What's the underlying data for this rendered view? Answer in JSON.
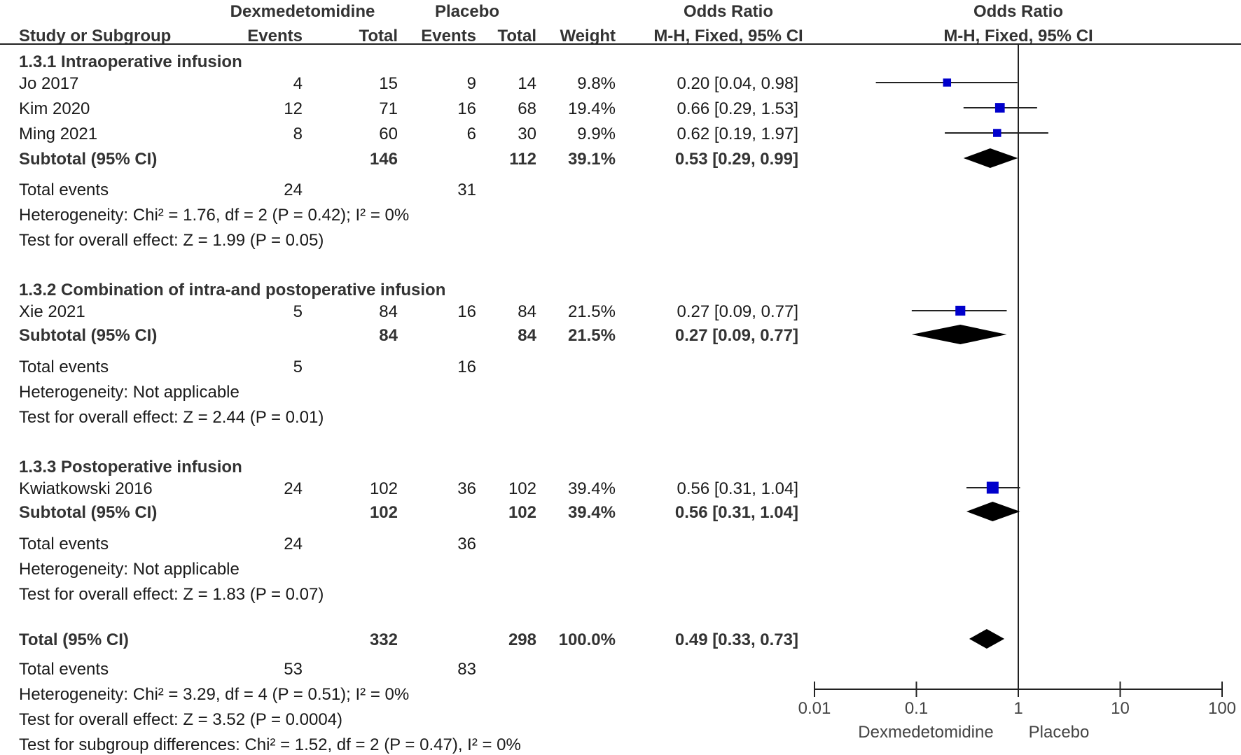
{
  "chart_data": {
    "type": "forest",
    "title": "Odds Ratio",
    "method": "M-H, Fixed, 95% CI",
    "header": {
      "group1": "Dexmedetomidine",
      "group2": "Placebo",
      "or_col": "Odds Ratio",
      "plot_col": "Odds Ratio",
      "study_col": "Study or Subgroup",
      "events": "Events",
      "total": "Total",
      "weight": "Weight",
      "or_sub": "M-H, Fixed, 95% CI",
      "plot_sub": "M-H, Fixed, 95% CI"
    },
    "subgroups": [
      {
        "title": "1.3.1 Intraoperative infusion",
        "studies": [
          {
            "name": "Jo 2017",
            "e1": "4",
            "t1": "15",
            "e2": "9",
            "t2": "14",
            "weight": "9.8%",
            "or_text": "0.20 [0.04, 0.98]",
            "or": 0.2,
            "lo": 0.04,
            "hi": 0.98
          },
          {
            "name": "Kim 2020",
            "e1": "12",
            "t1": "71",
            "e2": "16",
            "t2": "68",
            "weight": "19.4%",
            "or_text": "0.66 [0.29, 1.53]",
            "or": 0.66,
            "lo": 0.29,
            "hi": 1.53
          },
          {
            "name": "Ming 2021",
            "e1": "8",
            "t1": "60",
            "e2": "6",
            "t2": "30",
            "weight": "9.9%",
            "or_text": "0.62 [0.19, 1.97]",
            "or": 0.62,
            "lo": 0.19,
            "hi": 1.97
          }
        ],
        "subtotal": {
          "label": "Subtotal (95% CI)",
          "t1": "146",
          "t2": "112",
          "weight": "39.1%",
          "or_text": "0.53 [0.29, 0.99]",
          "or": 0.53,
          "lo": 0.29,
          "hi": 0.99
        },
        "total_events": {
          "label": "Total events",
          "e1": "24",
          "e2": "31"
        },
        "heterogeneity": "Heterogeneity: Chi² = 1.76, df = 2 (P = 0.42); I² = 0%",
        "overall": "Test for overall effect: Z = 1.99 (P = 0.05)"
      },
      {
        "title": "1.3.2 Combination of intra-and postoperative infusion",
        "studies": [
          {
            "name": "Xie 2021",
            "e1": "5",
            "t1": "84",
            "e2": "16",
            "t2": "84",
            "weight": "21.5%",
            "or_text": "0.27 [0.09, 0.77]",
            "or": 0.27,
            "lo": 0.09,
            "hi": 0.77
          }
        ],
        "subtotal": {
          "label": "Subtotal (95% CI)",
          "t1": "84",
          "t2": "84",
          "weight": "21.5%",
          "or_text": "0.27 [0.09, 0.77]",
          "or": 0.27,
          "lo": 0.09,
          "hi": 0.77
        },
        "total_events": {
          "label": "Total events",
          "e1": "5",
          "e2": "16"
        },
        "heterogeneity": "Heterogeneity: Not applicable",
        "overall": "Test for overall effect: Z = 2.44 (P = 0.01)"
      },
      {
        "title": "1.3.3 Postoperative infusion",
        "studies": [
          {
            "name": "Kwiatkowski 2016",
            "e1": "24",
            "t1": "102",
            "e2": "36",
            "t2": "102",
            "weight": "39.4%",
            "or_text": "0.56 [0.31, 1.04]",
            "or": 0.56,
            "lo": 0.31,
            "hi": 1.04
          }
        ],
        "subtotal": {
          "label": "Subtotal (95% CI)",
          "t1": "102",
          "t2": "102",
          "weight": "39.4%",
          "or_text": "0.56 [0.31, 1.04]",
          "or": 0.56,
          "lo": 0.31,
          "hi": 1.04
        },
        "total_events": {
          "label": "Total events",
          "e1": "24",
          "e2": "36"
        },
        "heterogeneity": "Heterogeneity: Not applicable",
        "overall": "Test for overall effect: Z = 1.83 (P = 0.07)"
      }
    ],
    "total": {
      "label": "Total (95% CI)",
      "t1": "332",
      "t2": "298",
      "weight": "100.0%",
      "or_text": "0.49 [0.33, 0.73]",
      "or": 0.49,
      "lo": 0.33,
      "hi": 0.73
    },
    "total_events": {
      "label": "Total events",
      "e1": "53",
      "e2": "83"
    },
    "heterogeneity": "Heterogeneity: Chi² = 3.29, df = 4 (P = 0.51); I² = 0%",
    "overall": "Test for overall effect: Z = 3.52 (P = 0.0004)",
    "subgroup_diff": "Test for subgroup differences: Chi² = 1.52, df = 2 (P = 0.47), I² = 0%",
    "axis": {
      "scale": "log",
      "range": [
        0.01,
        100
      ],
      "ticks": [
        0.01,
        0.1,
        1,
        10,
        100
      ],
      "tick_labels": [
        "0.01",
        "0.1",
        "1",
        "10",
        "100"
      ],
      "favours_left": "Dexmedetomidine",
      "favours_right": "Placebo"
    },
    "colors": {
      "marker": "#0000cc",
      "diamond": "#000000",
      "text": "#1a1a1a"
    }
  }
}
